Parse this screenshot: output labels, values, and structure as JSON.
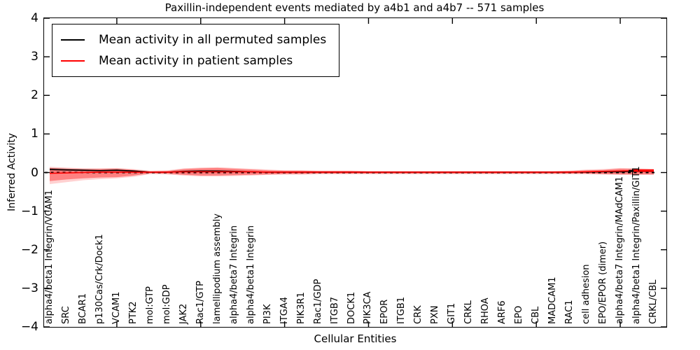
{
  "title": "Paxillin-independent events mediated by a4b1 and a4b7 -- 571 samples",
  "axes": {
    "xlabel": "Cellular Entities",
    "ylabel": "Inferred Activity",
    "y_tick_labels": [
      "4",
      "3",
      "2",
      "1",
      "0",
      "−1",
      "−2",
      "−3",
      "−4"
    ],
    "ylim": [
      -4,
      4
    ],
    "x_major_tick_positions": [
      4,
      9,
      14,
      19,
      24,
      29,
      34
    ]
  },
  "legend": {
    "items": [
      {
        "label": "Mean activity in all permuted samples",
        "color": "#000000"
      },
      {
        "label": "Mean activity in patient samples",
        "color": "#ff0000"
      }
    ]
  },
  "colors": {
    "patient_line": "#ff0000",
    "permuted_line": "#000000",
    "zero_line": "#000000",
    "band_inner": "rgba(255,0,0,0.38)",
    "band_outer": "rgba(255,0,0,0.18)",
    "band_gray": "rgba(110,110,110,0.45)"
  },
  "chart_data": {
    "type": "line",
    "title": "Paxillin-independent events mediated by a4b1 and a4b7 -- 571 samples",
    "xlabel": "Cellular Entities",
    "ylabel": "Inferred Activity",
    "ylim": [
      -4,
      4
    ],
    "grid": false,
    "legend_position": "upper left",
    "categories": [
      "alpha4/beta1 Integrin/VCAM1",
      "SRC",
      "BCAR1",
      "p130Cas/Crk/Dock1",
      "VCAM1",
      "PTK2",
      "mol:GTP",
      "mol:GDP",
      "JAK2",
      "Rac1/GTP",
      "lamellipodium assembly",
      "alpha4/beta7 Integrin",
      "alpha4/beta1 Integrin",
      "PI3K",
      "ITGA4",
      "PIK3R1",
      "Rac1/GDP",
      "ITGB7",
      "DOCK1",
      "PIK3CA",
      "EPOR",
      "ITGB1",
      "CRK",
      "PXN",
      "GIT1",
      "CRKL",
      "RHOA",
      "ARF6",
      "EPO",
      "CBL",
      "MADCAM1",
      "RAC1",
      "cell adhesion",
      "EPO/EPOR (dimer)",
      "alpha4/beta7 Integrin/MAdCAM1",
      "alpha4/beta1 Integrin/Paxillin/GIT1",
      "CRKL/CBL"
    ],
    "series": [
      {
        "name": "Mean activity in all permuted samples",
        "color": "#000000",
        "values": [
          0.08,
          0.07,
          0.06,
          0.05,
          0.06,
          0.04,
          0.01,
          0.01,
          0.03,
          0.04,
          0.04,
          0.03,
          0.02,
          0.01,
          0.01,
          0.01,
          0.01,
          0.01,
          0.01,
          0.01,
          0.01,
          0.01,
          0.01,
          0.01,
          0.01,
          0.01,
          0.01,
          0.01,
          0.01,
          0.01,
          0.01,
          0.01,
          0.01,
          0.02,
          0.02,
          0.04,
          0.06
        ]
      },
      {
        "name": "Mean activity in patient samples",
        "color": "#ff0000",
        "values": [
          -0.02,
          -0.01,
          0.0,
          0.01,
          0.01,
          0.01,
          0.01,
          0.01,
          0.02,
          0.02,
          0.02,
          0.02,
          0.02,
          0.01,
          0.01,
          0.01,
          0.01,
          0.01,
          0.01,
          0.01,
          0.01,
          0.01,
          0.01,
          0.01,
          0.01,
          0.01,
          0.01,
          0.01,
          0.01,
          0.01,
          0.01,
          0.01,
          0.02,
          0.03,
          0.04,
          0.05,
          0.05
        ]
      }
    ],
    "bands": [
      {
        "name": "patient-std-outer",
        "colorKey": "band_outer",
        "upper": [
          0.15,
          0.13,
          0.11,
          0.11,
          0.12,
          0.09,
          0.05,
          0.06,
          0.11,
          0.13,
          0.14,
          0.12,
          0.1,
          0.08,
          0.06,
          0.06,
          0.05,
          0.05,
          0.05,
          0.04,
          0.04,
          0.04,
          0.04,
          0.04,
          0.04,
          0.04,
          0.04,
          0.04,
          0.04,
          0.04,
          0.04,
          0.05,
          0.08,
          0.09,
          0.12,
          0.11,
          0.1
        ],
        "lower": [
          -0.3,
          -0.25,
          -0.2,
          -0.17,
          -0.15,
          -0.11,
          -0.04,
          -0.05,
          -0.08,
          -0.1,
          -0.1,
          -0.09,
          -0.08,
          -0.06,
          -0.05,
          -0.05,
          -0.04,
          -0.04,
          -0.04,
          -0.04,
          -0.04,
          -0.04,
          -0.04,
          -0.04,
          -0.04,
          -0.04,
          -0.04,
          -0.04,
          -0.04,
          -0.04,
          -0.04,
          -0.04,
          -0.04,
          -0.05,
          -0.06,
          -0.06,
          -0.06
        ]
      },
      {
        "name": "permuted-std-gray",
        "colorKey": "band_gray",
        "upper": [
          0.12,
          0.105,
          0.09,
          0.08,
          0.09,
          0.06,
          0.02,
          0.02,
          0.05,
          0.06,
          0.06,
          0.045,
          0.03,
          0.02,
          0.015,
          0.015,
          0.015,
          0.015,
          0.015,
          0.015,
          0.015,
          0.015,
          0.015,
          0.015,
          0.015,
          0.015,
          0.015,
          0.015,
          0.015,
          0.015,
          0.015,
          0.015,
          0.02,
          0.03,
          0.03,
          0.05,
          0.08
        ],
        "lower": [
          0.04,
          0.035,
          0.03,
          0.02,
          0.03,
          0.02,
          0.0,
          0.0,
          0.01,
          0.01,
          0.01,
          0.005,
          0.0,
          0.0,
          0.0,
          0.0,
          0.0,
          0.0,
          0.0,
          0.0,
          0.0,
          0.0,
          0.0,
          0.0,
          0.0,
          0.0,
          0.0,
          0.0,
          0.0,
          0.0,
          0.0,
          0.0,
          0.0,
          0.01,
          0.01,
          0.02,
          0.04
        ]
      },
      {
        "name": "patient-std-inner",
        "colorKey": "band_inner",
        "upper": [
          0.12,
          0.1,
          0.09,
          0.09,
          0.1,
          0.07,
          0.03,
          0.04,
          0.09,
          0.11,
          0.12,
          0.1,
          0.08,
          0.06,
          0.05,
          0.05,
          0.04,
          0.04,
          0.04,
          0.03,
          0.03,
          0.03,
          0.03,
          0.03,
          0.03,
          0.03,
          0.03,
          0.03,
          0.03,
          0.03,
          0.03,
          0.04,
          0.06,
          0.07,
          0.1,
          0.09,
          0.08
        ],
        "lower": [
          -0.22,
          -0.18,
          -0.15,
          -0.13,
          -0.12,
          -0.08,
          -0.02,
          -0.03,
          -0.06,
          -0.08,
          -0.08,
          -0.07,
          -0.06,
          -0.05,
          -0.04,
          -0.04,
          -0.03,
          -0.03,
          -0.03,
          -0.03,
          -0.03,
          -0.03,
          -0.03,
          -0.03,
          -0.03,
          -0.03,
          -0.03,
          -0.03,
          -0.03,
          -0.03,
          -0.03,
          -0.03,
          -0.03,
          -0.04,
          -0.05,
          -0.05,
          -0.05
        ]
      }
    ],
    "zero_line": {
      "style": "dashed",
      "color": "#000000",
      "y": 0
    }
  }
}
